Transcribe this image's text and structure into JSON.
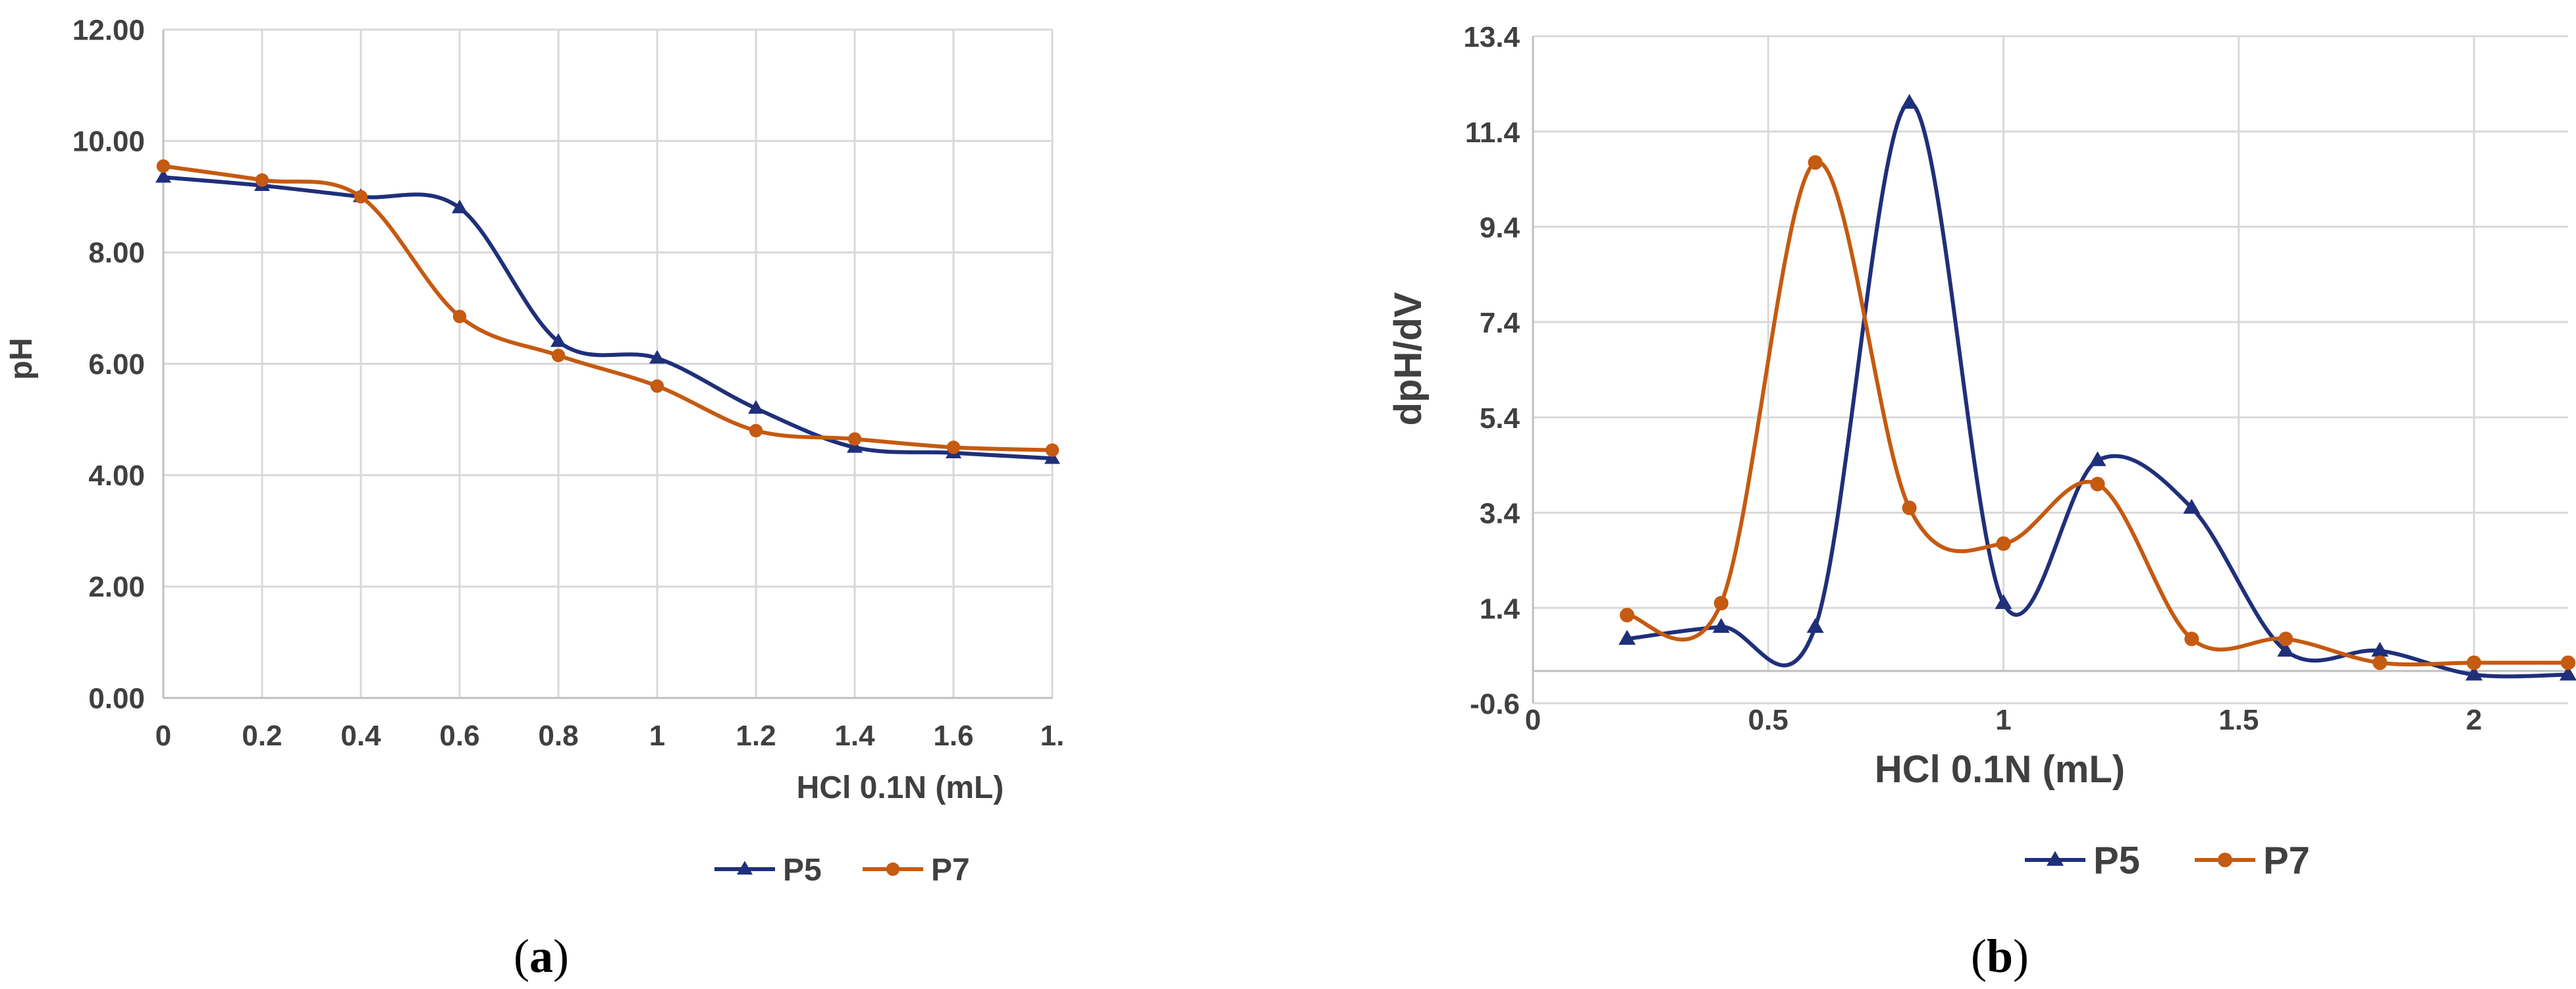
{
  "chart_data": [
    {
      "id": "a",
      "type": "line",
      "caption_letter": "a",
      "xlabel": "HCl 0.1N (mL)",
      "ylabel": "pH",
      "xlim": [
        0,
        1.8
      ],
      "ylim": [
        0,
        12
      ],
      "x_ticks": [
        "0",
        "0.2",
        "0.4",
        "0.6",
        "0.8",
        "1",
        "1.2",
        "1.4",
        "1.6",
        "1."
      ],
      "y_ticks": [
        "0.00",
        "2.00",
        "4.00",
        "6.00",
        "8.00",
        "10.00",
        "12.00"
      ],
      "grid": true,
      "legend": "bottom-center",
      "series": [
        {
          "name": "P5",
          "color": "#1f2f7a",
          "marker": "triangle",
          "x": [
            0,
            0.2,
            0.4,
            0.6,
            0.8,
            1.0,
            1.2,
            1.4,
            1.6,
            1.8
          ],
          "values": [
            9.35,
            9.2,
            9.0,
            8.8,
            6.4,
            6.1,
            5.2,
            4.5,
            4.4,
            4.3
          ]
        },
        {
          "name": "P7",
          "color": "#c55a11",
          "marker": "circle",
          "x": [
            0,
            0.2,
            0.4,
            0.6,
            0.8,
            1.0,
            1.2,
            1.4,
            1.6,
            1.8
          ],
          "values": [
            9.55,
            9.3,
            9.0,
            6.85,
            6.15,
            5.6,
            4.8,
            4.65,
            4.5,
            4.45
          ]
        }
      ]
    },
    {
      "id": "b",
      "type": "line",
      "caption_letter": "b",
      "xlabel": "HCl 0.1N (mL)",
      "ylabel": "dpH/dV",
      "xlim": [
        0,
        2.2
      ],
      "ylim": [
        -0.6,
        13.4
      ],
      "x_ticks": [
        "0",
        "0.5",
        "1",
        "1.5",
        "2"
      ],
      "x_tick_values": [
        0,
        0.5,
        1,
        1.5,
        2
      ],
      "y_ticks": [
        "-0.6",
        "1.4",
        "3.4",
        "5.4",
        "7.4",
        "9.4",
        "11.4",
        "13.4"
      ],
      "y_tick_values": [
        -0.6,
        1.4,
        3.4,
        5.4,
        7.4,
        9.4,
        11.4,
        13.4
      ],
      "grid": true,
      "legend": "bottom-center",
      "series": [
        {
          "name": "P5",
          "color": "#1f2f7a",
          "marker": "triangle",
          "x": [
            0.2,
            0.4,
            0.6,
            0.8,
            1.0,
            1.2,
            1.4,
            1.6,
            1.8,
            2.0,
            2.2
          ],
          "values": [
            0.75,
            1.0,
            1.0,
            12.0,
            1.5,
            4.5,
            3.5,
            0.5,
            0.5,
            0.0,
            0.0
          ]
        },
        {
          "name": "P7",
          "color": "#c55a11",
          "marker": "circle",
          "x": [
            0.2,
            0.4,
            0.6,
            0.8,
            1.0,
            1.2,
            1.4,
            1.6,
            1.8,
            2.0,
            2.2
          ],
          "values": [
            1.25,
            1.5,
            10.75,
            3.5,
            2.75,
            4.0,
            0.75,
            0.75,
            0.25,
            0.25,
            0.25
          ]
        }
      ]
    }
  ]
}
